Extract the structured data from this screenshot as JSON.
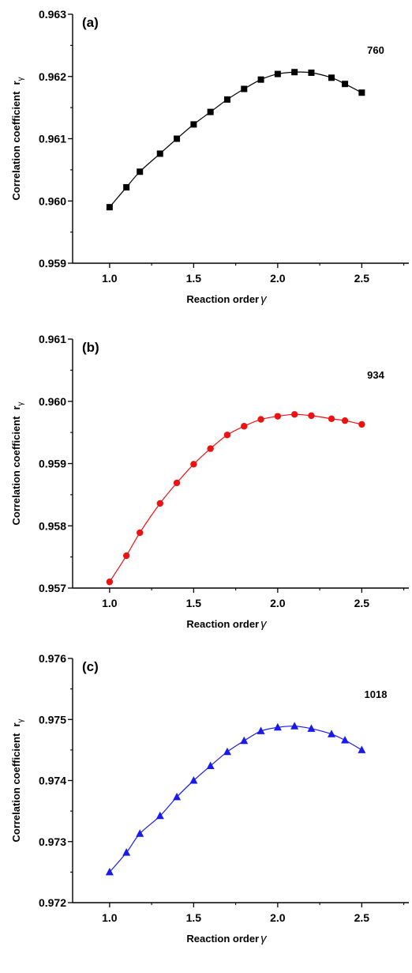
{
  "chart_data": [
    {
      "type": "line",
      "panel_label": "(a)",
      "annotation": "760",
      "xlabel": "Reaction order",
      "xlabel_symbol": "γ",
      "ylabel": "Correlation coefficient",
      "ylabel_symbol": "r",
      "ylabel_subscript": "γ",
      "xlim": [
        0.78,
        2.78
      ],
      "ylim": [
        0.959,
        0.963
      ],
      "x_ticks": [
        1.0,
        1.5,
        2.0,
        2.5
      ],
      "x_tick_labels": [
        "1.0",
        "1.5",
        "2.0",
        "2.5"
      ],
      "y_ticks": [
        0.959,
        0.96,
        0.961,
        0.962,
        0.963
      ],
      "y_tick_labels": [
        "0.959",
        "0.960",
        "0.961",
        "0.962",
        "0.963"
      ],
      "grid": false,
      "series": [
        {
          "color": "#000000",
          "marker": "square",
          "x": [
            1.0,
            1.1,
            1.18,
            1.3,
            1.4,
            1.5,
            1.6,
            1.7,
            1.8,
            1.9,
            2.0,
            2.1,
            2.2,
            2.32,
            2.4,
            2.5
          ],
          "y": [
            0.9599,
            0.96022,
            0.96047,
            0.96076,
            0.961,
            0.96123,
            0.96143,
            0.96163,
            0.9618,
            0.96195,
            0.96204,
            0.96207,
            0.96206,
            0.96198,
            0.96188,
            0.96174
          ]
        }
      ]
    },
    {
      "type": "line",
      "panel_label": "(b)",
      "annotation": "934",
      "xlabel": "Reaction order",
      "xlabel_symbol": "γ",
      "ylabel": "Correlation coefficient",
      "ylabel_symbol": "r",
      "ylabel_subscript": "γ",
      "xlim": [
        0.78,
        2.78
      ],
      "ylim": [
        0.957,
        0.961
      ],
      "x_ticks": [
        1.0,
        1.5,
        2.0,
        2.5
      ],
      "x_tick_labels": [
        "1.0",
        "1.5",
        "2.0",
        "2.5"
      ],
      "y_ticks": [
        0.957,
        0.958,
        0.959,
        0.96,
        0.961
      ],
      "y_tick_labels": [
        "0.957",
        "0.958",
        "0.959",
        "0.960",
        "0.961"
      ],
      "grid": false,
      "series": [
        {
          "color": "#ee1111",
          "marker": "circle",
          "x": [
            1.0,
            1.1,
            1.18,
            1.3,
            1.4,
            1.5,
            1.6,
            1.7,
            1.8,
            1.9,
            2.0,
            2.1,
            2.2,
            2.32,
            2.4,
            2.5
          ],
          "y": [
            0.9571,
            0.95752,
            0.95789,
            0.95836,
            0.95869,
            0.95899,
            0.95924,
            0.95946,
            0.9596,
            0.95971,
            0.95976,
            0.95979,
            0.95977,
            0.95972,
            0.95969,
            0.95963
          ]
        }
      ]
    },
    {
      "type": "line",
      "panel_label": "(c)",
      "annotation": "1018",
      "xlabel": "Reaction order",
      "xlabel_symbol": "γ",
      "ylabel": "Correlation coefficient",
      "ylabel_symbol": "r",
      "ylabel_subscript": "γ",
      "xlim": [
        0.78,
        2.78
      ],
      "ylim": [
        0.972,
        0.976
      ],
      "x_ticks": [
        1.0,
        1.5,
        2.0,
        2.5
      ],
      "x_tick_labels": [
        "1.0",
        "1.5",
        "2.0",
        "2.5"
      ],
      "y_ticks": [
        0.972,
        0.973,
        0.974,
        0.975,
        0.976
      ],
      "y_tick_labels": [
        "0.972",
        "0.973",
        "0.974",
        "0.975",
        "0.976"
      ],
      "grid": false,
      "series": [
        {
          "color": "#1a1aee",
          "marker": "triangle",
          "x": [
            1.0,
            1.1,
            1.18,
            1.3,
            1.4,
            1.5,
            1.6,
            1.7,
            1.8,
            1.9,
            2.0,
            2.1,
            2.2,
            2.32,
            2.4,
            2.5
          ],
          "y": [
            0.9725,
            0.97282,
            0.97313,
            0.97342,
            0.97373,
            0.974,
            0.97424,
            0.97447,
            0.97465,
            0.97481,
            0.97487,
            0.97489,
            0.97485,
            0.97476,
            0.97466,
            0.9745
          ]
        }
      ]
    }
  ]
}
